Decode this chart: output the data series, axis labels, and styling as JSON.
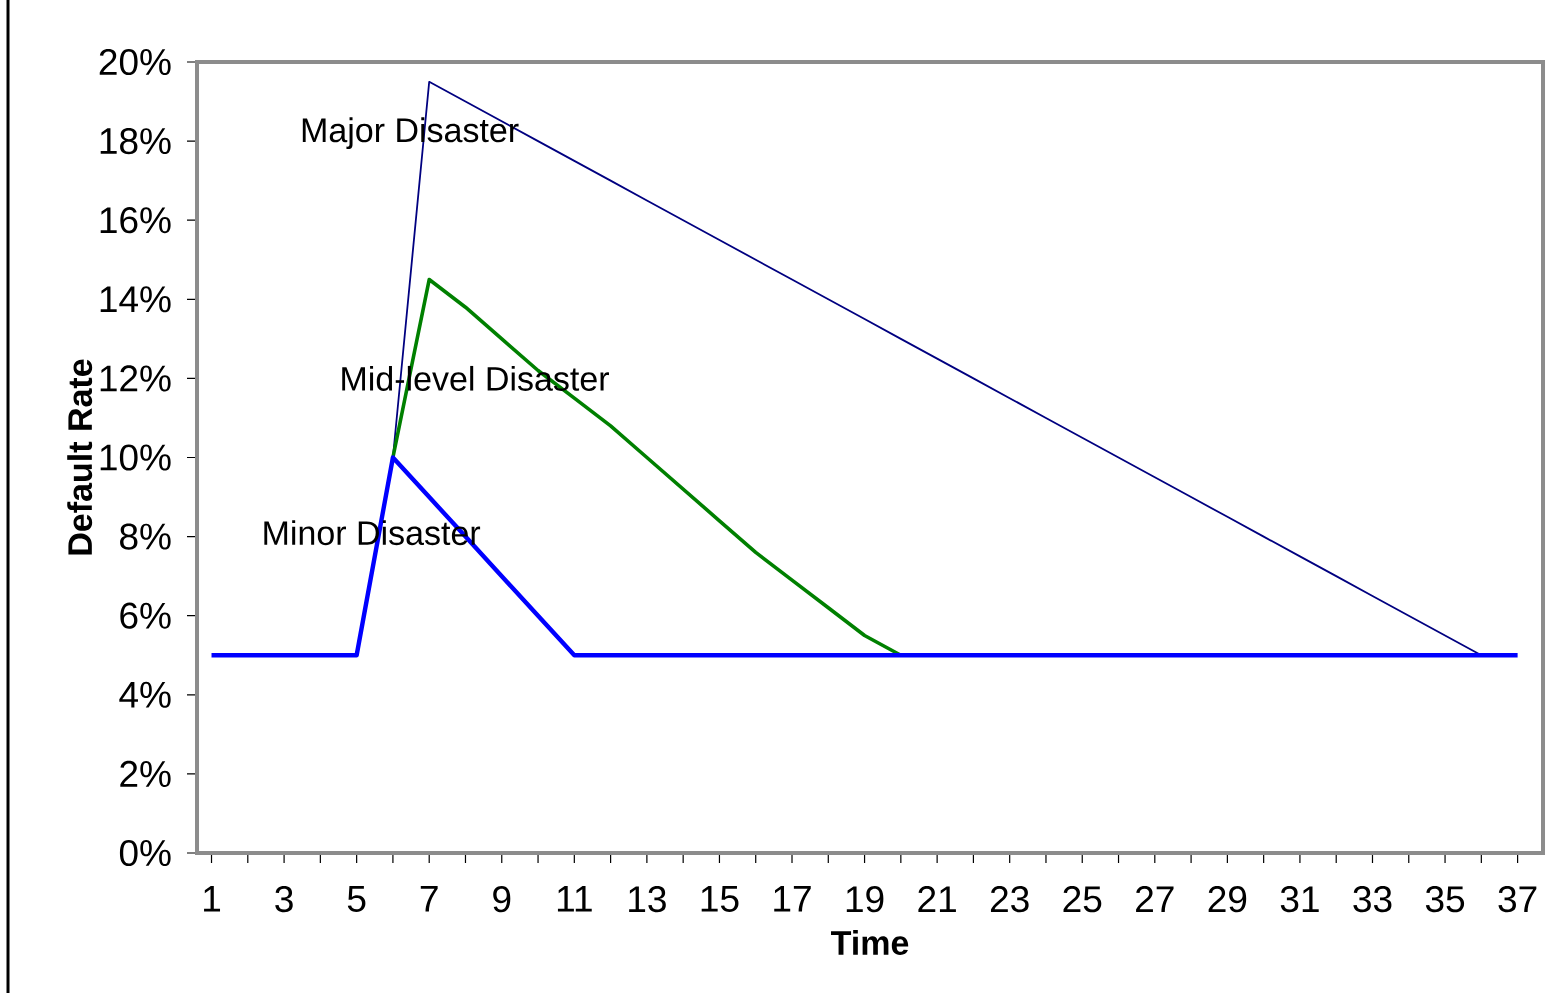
{
  "chart_data": {
    "type": "line",
    "xlabel": "Time",
    "ylabel": "Default Rate",
    "categories": [
      "1",
      null,
      "3",
      null,
      "5",
      null,
      "7",
      null,
      "9",
      null,
      "11",
      null,
      "13",
      null,
      "15",
      null,
      "17",
      null,
      "19",
      null,
      "21",
      null,
      "23",
      null,
      "25",
      null,
      "27",
      null,
      "29",
      null,
      "31",
      null,
      "33",
      null,
      "35",
      null,
      "37"
    ],
    "ylim": [
      0,
      20
    ],
    "yticks": [
      {
        "value": 0,
        "label": "0%"
      },
      {
        "value": 2,
        "label": "2%"
      },
      {
        "value": 4,
        "label": "4%"
      },
      {
        "value": 6,
        "label": "6%"
      },
      {
        "value": 8,
        "label": "8%"
      },
      {
        "value": 10,
        "label": "10%"
      },
      {
        "value": 12,
        "label": "12%"
      },
      {
        "value": 14,
        "label": "14%"
      },
      {
        "value": 16,
        "label": "16%"
      },
      {
        "value": 18,
        "label": "18%"
      },
      {
        "value": 20,
        "label": "20%"
      }
    ],
    "series": [
      {
        "name": "Major Disaster",
        "color": "#000080",
        "values": [
          null,
          null,
          null,
          null,
          null,
          10,
          19.5,
          19,
          18.5,
          18,
          17.5,
          17,
          16.5,
          16,
          15.5,
          15,
          14.5,
          14,
          13.5,
          13,
          12.5,
          12,
          11.5,
          11,
          10.5,
          10,
          9.5,
          9,
          8.5,
          8,
          7.5,
          7,
          6.5,
          6,
          5.5,
          5,
          null
        ]
      },
      {
        "name": "Mid-level Disaster",
        "color": "#008000",
        "values": [
          null,
          null,
          null,
          null,
          null,
          10,
          14.5,
          13.8,
          13,
          12.2,
          11.5,
          10.8,
          10,
          9.2,
          8.4,
          7.6,
          6.9,
          6.2,
          5.5,
          5,
          null,
          null,
          null,
          null,
          null,
          null,
          null,
          null,
          null,
          null,
          null,
          null,
          null,
          null,
          null,
          null,
          null
        ]
      },
      {
        "name": "Minor Disaster",
        "color": "#0000ff",
        "values": [
          5,
          5,
          5,
          5,
          5,
          10,
          9,
          8,
          7,
          6,
          5,
          5,
          5,
          5,
          5,
          5,
          5,
          5,
          5,
          5,
          5,
          5,
          5,
          5,
          5,
          5,
          5,
          5,
          5,
          5,
          5,
          5,
          5,
          5,
          5,
          5,
          5
        ]
      }
    ]
  }
}
